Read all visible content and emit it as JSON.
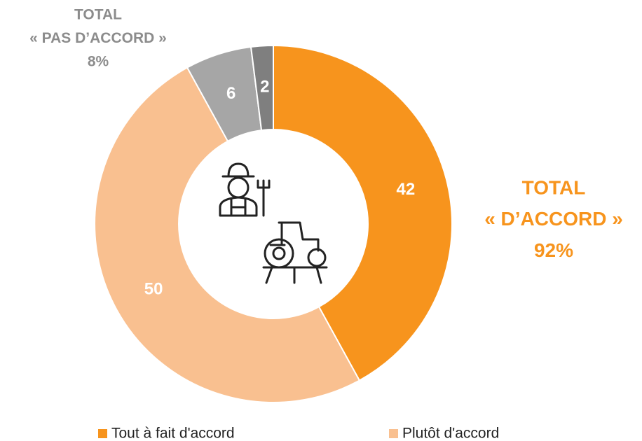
{
  "chart_data": {
    "type": "donut",
    "categories": [
      "Tout à fait d'accord",
      "Plutôt d'accord",
      null,
      null
    ],
    "values": [
      42,
      50,
      6,
      2
    ],
    "colors": [
      "#f7941d",
      "#f9c090",
      "#a6a6a6",
      "#7f7f7f"
    ],
    "annotations": [
      {
        "lines": [
          "TOTAL",
          "« PAS D’ACCORD »",
          "8%"
        ],
        "color": "#8c8c8c"
      },
      {
        "lines": [
          "TOTAL",
          "« D’ACCORD »",
          "92%"
        ],
        "color": "#f7941d"
      }
    ]
  }
}
